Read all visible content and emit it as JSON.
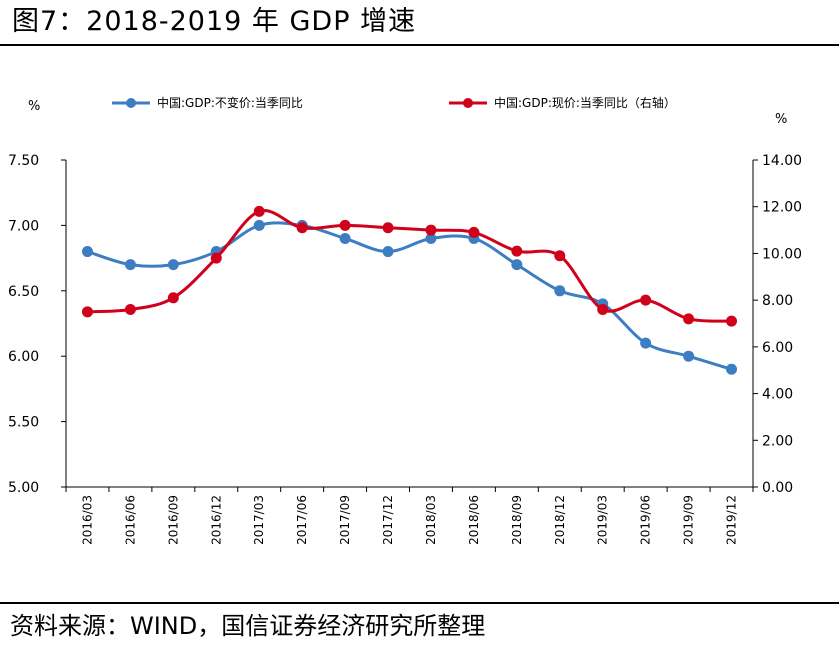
{
  "figure": {
    "title": "图7：2018-2019 年 GDP 增速",
    "source": "资料来源：WIND，国信证券经济研究所整理"
  },
  "chart_data": {
    "type": "line",
    "categories": [
      "2016/03",
      "2016/06",
      "2016/09",
      "2016/12",
      "2017/03",
      "2017/06",
      "2017/09",
      "2017/12",
      "2018/03",
      "2018/06",
      "2018/09",
      "2018/12",
      "2019/03",
      "2019/06",
      "2019/09",
      "2019/12"
    ],
    "series": [
      {
        "name": "中国:GDP:不变价:当季同比",
        "axis": "left",
        "color": "#3d7ec2",
        "values": [
          6.8,
          6.7,
          6.7,
          6.8,
          7.0,
          7.0,
          6.9,
          6.8,
          6.9,
          6.9,
          6.7,
          6.5,
          6.4,
          6.1,
          6.0,
          5.9
        ]
      },
      {
        "name": "中国:GDP:现价:当季同比（右轴）",
        "axis": "right",
        "color": "#d0021b",
        "values": [
          7.5,
          7.6,
          8.1,
          9.8,
          11.8,
          11.1,
          11.2,
          11.1,
          11.0,
          10.9,
          10.1,
          9.9,
          7.6,
          8.0,
          7.2,
          7.1
        ]
      }
    ],
    "left_axis": {
      "unit": "%",
      "ylim": [
        5.0,
        7.5
      ],
      "ticks": [
        "5.00",
        "5.50",
        "6.00",
        "6.50",
        "7.00",
        "7.50"
      ]
    },
    "right_axis": {
      "unit": "%",
      "ylim": [
        0,
        14
      ],
      "ticks": [
        "0.00",
        "2.00",
        "4.00",
        "6.00",
        "8.00",
        "10.00",
        "12.00",
        "14.00"
      ]
    },
    "legend": "top",
    "grid": false
  }
}
